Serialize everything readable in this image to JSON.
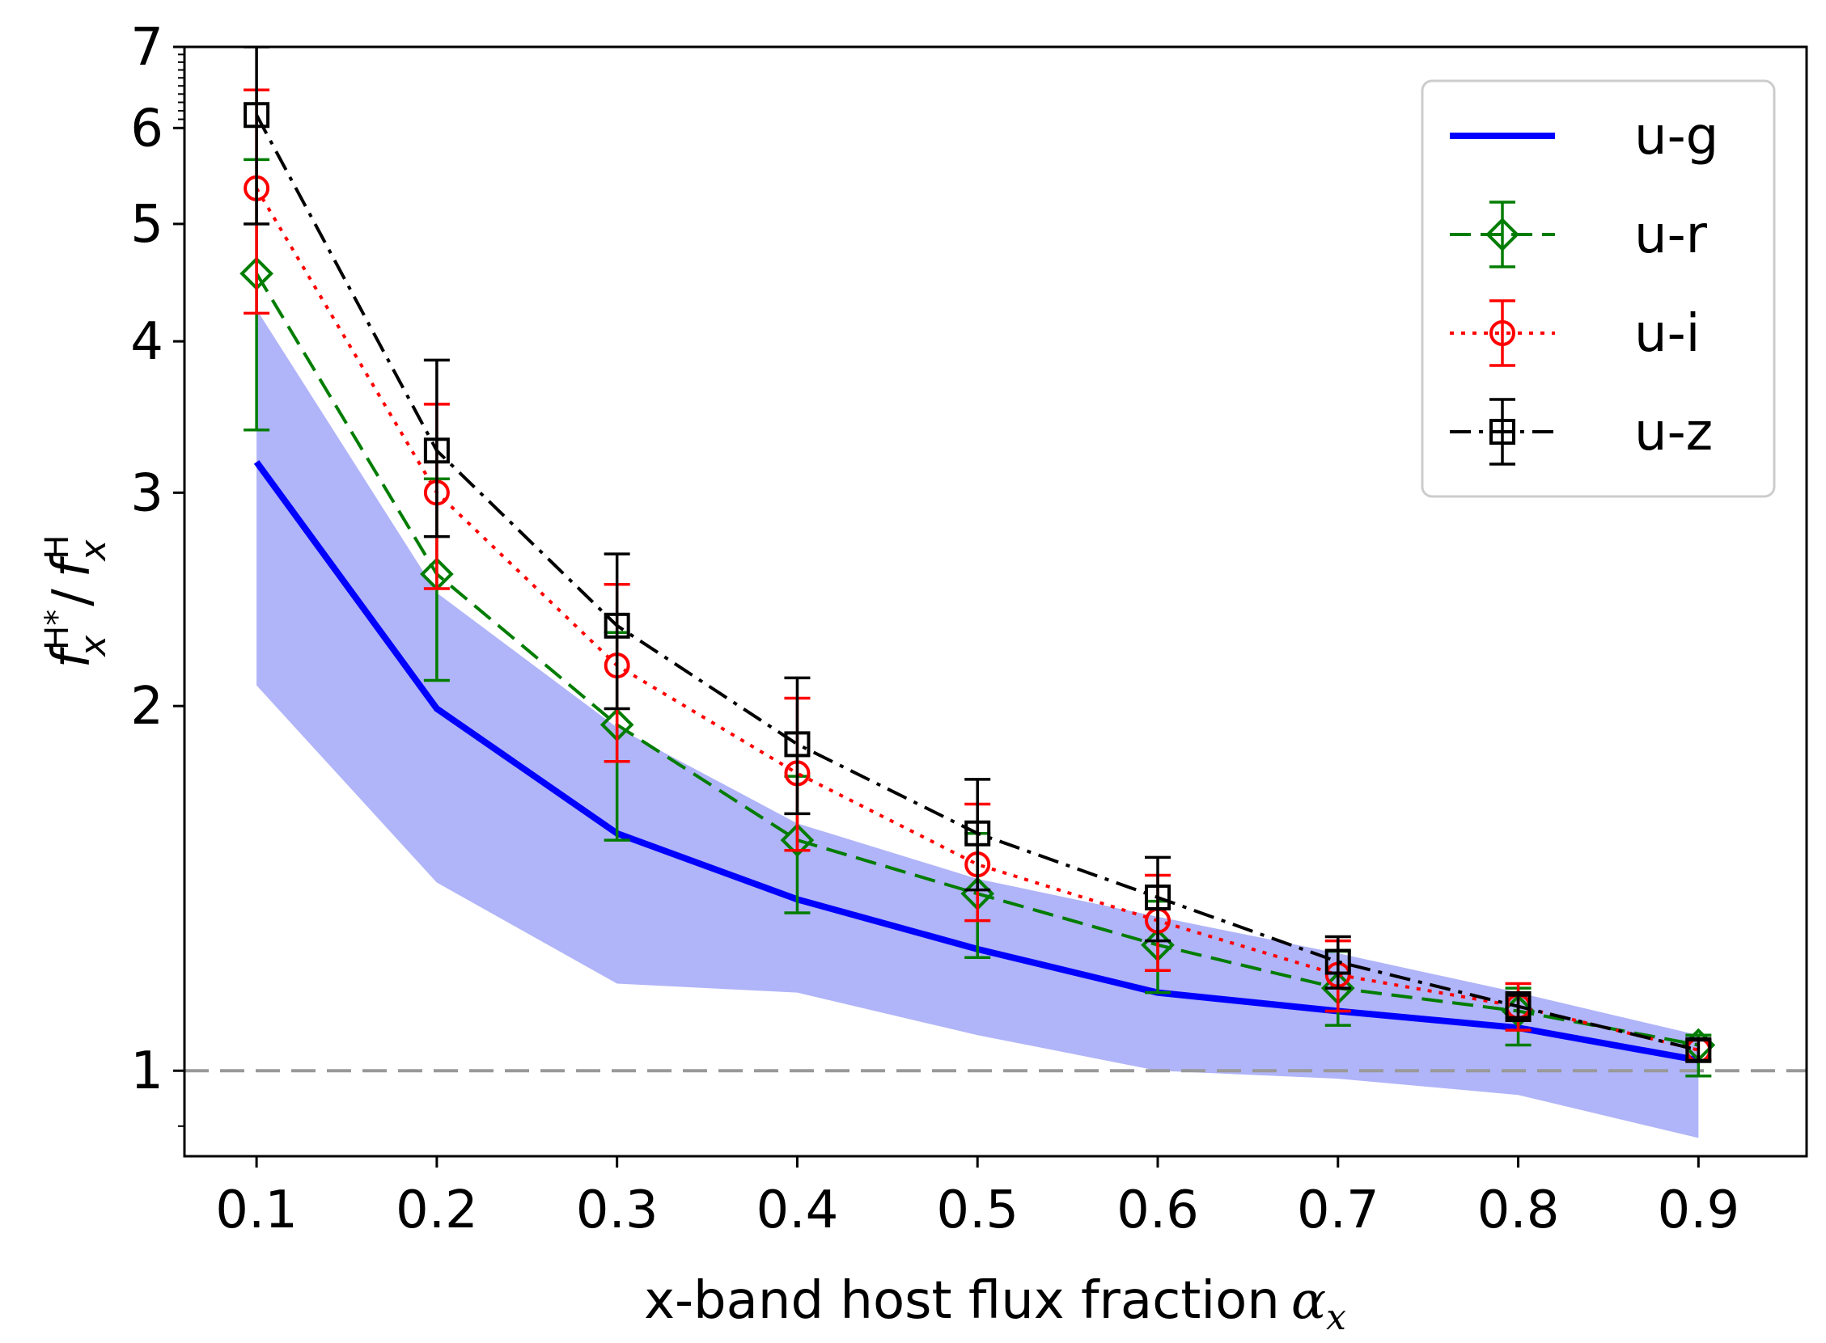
{
  "chart_data": {
    "type": "line",
    "x": [
      0.1,
      0.2,
      0.3,
      0.4,
      0.5,
      0.6,
      0.7,
      0.8,
      0.9
    ],
    "xlabel": "x-band host flux fraction",
    "xlabel_symbol": "α",
    "xlabel_subscript": "x",
    "ylabel_parts": {
      "num_base": "f",
      "num_sup": "H*",
      "num_sub": "x",
      "slash": "/",
      "den_base": "f",
      "den_sup": "H",
      "den_sub": "x"
    },
    "xlim": [
      0.06,
      0.96
    ],
    "ylim": [
      0.85,
      7
    ],
    "yscale": "log",
    "xticks": [
      "0.1",
      "0.2",
      "0.3",
      "0.4",
      "0.5",
      "0.6",
      "0.7",
      "0.8",
      "0.9"
    ],
    "xtick_values": [
      0.1,
      0.2,
      0.3,
      0.4,
      0.5,
      0.6,
      0.7,
      0.8,
      0.9
    ],
    "yticks": [
      "1",
      "2",
      "3",
      "4",
      "5",
      "6",
      "7"
    ],
    "ytick_values": [
      1,
      2,
      3,
      4,
      5,
      6,
      7
    ],
    "reference_line": {
      "y": 1,
      "color": "#999999",
      "style": "dashed"
    },
    "band": {
      "series": "u-g",
      "color": "#b0b4f8",
      "lower": [
        2.08,
        1.43,
        1.18,
        1.16,
        1.07,
        1.0,
        0.985,
        0.955,
        0.88
      ],
      "upper": [
        4.25,
        2.48,
        1.92,
        1.6,
        1.44,
        1.34,
        1.25,
        1.16,
        1.07
      ]
    },
    "series": [
      {
        "name": "u-g",
        "color": "#0000ff",
        "style": "solid",
        "marker": "none",
        "values": [
          3.18,
          1.99,
          1.57,
          1.385,
          1.26,
          1.16,
          1.12,
          1.085,
          1.02
        ]
      },
      {
        "name": "u-r",
        "color": "#007d00",
        "style": "dashed",
        "marker": "diamond",
        "values": [
          4.55,
          2.57,
          1.93,
          1.55,
          1.4,
          1.27,
          1.17,
          1.12,
          1.05
        ],
        "err_low": [
          3.38,
          2.1,
          1.55,
          1.35,
          1.24,
          1.16,
          1.09,
          1.05,
          0.99
        ],
        "err_high": [
          5.65,
          3.08,
          2.3,
          1.75,
          1.57,
          1.38,
          1.255,
          1.17,
          1.07
        ]
      },
      {
        "name": "u-i",
        "color": "#ff0000",
        "style": "dotted",
        "marker": "circle",
        "values": [
          5.35,
          3.0,
          2.16,
          1.76,
          1.48,
          1.33,
          1.2,
          1.13,
          1.04
        ],
        "err_low": [
          4.22,
          2.5,
          1.8,
          1.52,
          1.33,
          1.21,
          1.12,
          1.08,
          1.02
        ],
        "err_high": [
          6.45,
          3.55,
          2.52,
          2.03,
          1.66,
          1.45,
          1.28,
          1.18,
          1.06
        ]
      },
      {
        "name": "u-z",
        "color": "#000000",
        "style": "dashdot",
        "marker": "square",
        "values": [
          6.15,
          3.25,
          2.33,
          1.86,
          1.57,
          1.39,
          1.23,
          1.13,
          1.04
        ],
        "err_low": [
          5.0,
          2.76,
          1.99,
          1.63,
          1.41,
          1.28,
          1.17,
          1.1,
          1.02
        ],
        "err_high": [
          7.0,
          3.86,
          2.67,
          2.11,
          1.74,
          1.5,
          1.29,
          1.16,
          1.06
        ]
      }
    ],
    "legend": {
      "placement": "top-right",
      "entries": [
        "u-g",
        "u-r",
        "u-i",
        "u-z"
      ]
    }
  }
}
